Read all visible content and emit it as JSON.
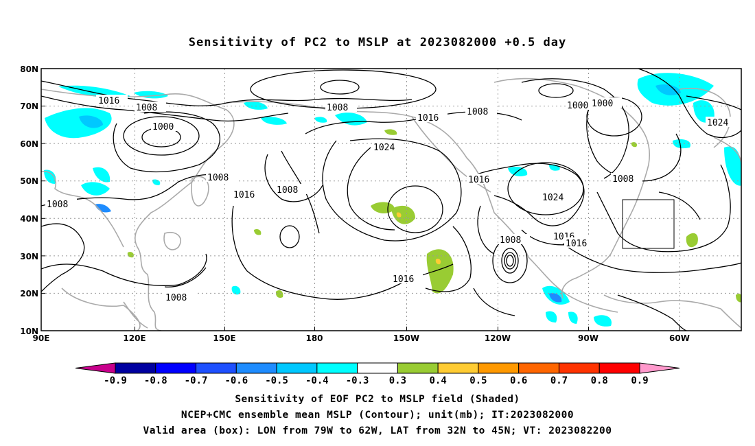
{
  "title": "Sensitivity of PC2 to MSLP at 2023082000 +0.5 day",
  "lat_labels": [
    "80N",
    "70N",
    "60N",
    "50N",
    "40N",
    "30N",
    "20N",
    "10N"
  ],
  "lon_labels": [
    "90E",
    "120E",
    "150E",
    "180",
    "150W",
    "120W",
    "90W",
    "60W"
  ],
  "contour_labels": [
    "1016",
    "1008",
    "1000",
    "1008",
    "1008",
    "1008",
    "1016",
    "1008",
    "1024",
    "1016",
    "1008",
    "1016",
    "1016",
    "1024",
    "1008",
    "1016",
    "1008",
    "1000",
    "1000",
    "1024",
    "1008",
    "1016"
  ],
  "colorbar": {
    "labels": [
      "-0.9",
      "-0.8",
      "-0.7",
      "-0.6",
      "-0.5",
      "-0.4",
      "-0.3",
      "0.3",
      "0.4",
      "0.5",
      "0.6",
      "0.7",
      "0.8",
      "0.9"
    ],
    "colors": [
      "#c8008c",
      "#0000a0",
      "#0000ff",
      "#1e50ff",
      "#1e8cff",
      "#00c8ff",
      "#00ffff",
      "#ffffff",
      "#99cc33",
      "#ffcc33",
      "#ff9900",
      "#ff6600",
      "#ff3300",
      "#ff0000",
      "#ff99cc"
    ]
  },
  "captions": [
    "Sensitivity of EOF PC2 to MSLP field (Shaded)",
    "NCEP+CMC ensemble mean MSLP (Contour); unit(mb); IT:2023082000",
    "Valid area (box): LON from 79W to 62W, LAT from 32N to 45N; VT: 2023082200"
  ],
  "map_data": {
    "lon_range": [
      "90E",
      "45W"
    ],
    "lat_range": [
      "10N",
      "80N"
    ],
    "valid_box": {
      "lon": [
        "79W",
        "62W"
      ],
      "lat": [
        "32N",
        "45N"
      ]
    },
    "contour_interval_mb": 8
  }
}
